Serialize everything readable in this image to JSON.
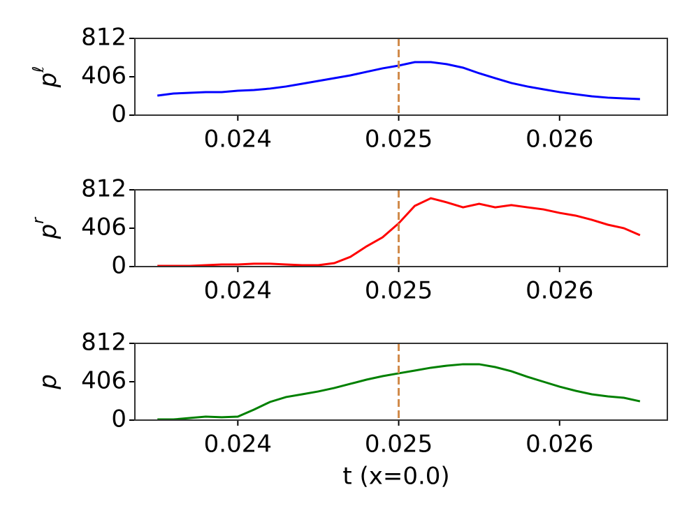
{
  "chart_data": [
    {
      "type": "line",
      "ylabel": "p",
      "ylabel_superscript": "ℓ",
      "x": [
        0.0235,
        0.0236,
        0.0237,
        0.0238,
        0.0239,
        0.024,
        0.0241,
        0.0242,
        0.0243,
        0.0244,
        0.0245,
        0.0246,
        0.0247,
        0.0248,
        0.0249,
        0.025,
        0.0251,
        0.0252,
        0.0253,
        0.0254,
        0.0255,
        0.0256,
        0.0257,
        0.0258,
        0.0259,
        0.026,
        0.0261,
        0.0262,
        0.0263,
        0.0264,
        0.0265
      ],
      "series": [
        {
          "color": "#0000ff",
          "values": [
            207,
            229,
            236,
            244,
            244,
            258,
            266,
            281,
            303,
            332,
            362,
            391,
            421,
            458,
            495,
            524,
            561,
            561,
            539,
            502,
            443,
            391,
            340,
            303,
            273,
            244,
            221,
            199,
            185,
            177,
            170
          ]
        }
      ],
      "xlim": [
        0.02336,
        0.02667
      ],
      "xticks": [
        0.024,
        0.025,
        0.026
      ],
      "ylim": [
        0,
        812
      ],
      "yticks": [
        0,
        406,
        812
      ],
      "vline": {
        "x": 0.025,
        "color": "#d08a4a",
        "linestyle": "dashed"
      }
    },
    {
      "type": "line",
      "ylabel": "p",
      "ylabel_superscript": "r",
      "x": [
        0.0235,
        0.0236,
        0.0237,
        0.0238,
        0.0239,
        0.024,
        0.0241,
        0.0242,
        0.0243,
        0.0244,
        0.0245,
        0.0246,
        0.0247,
        0.0248,
        0.0249,
        0.025,
        0.0251,
        0.0252,
        0.0253,
        0.0254,
        0.0255,
        0.0256,
        0.0257,
        0.0258,
        0.0259,
        0.026,
        0.0261,
        0.0262,
        0.0263,
        0.0264,
        0.0265
      ],
      "series": [
        {
          "color": "#ff0000",
          "values": [
            7,
            7,
            7,
            15,
            22,
            22,
            30,
            30,
            22,
            15,
            15,
            37,
            103,
            214,
            310,
            458,
            642,
            723,
            679,
            627,
            664,
            627,
            650,
            627,
            605,
            568,
            539,
            495,
            443,
            406,
            332
          ]
        }
      ],
      "xlim": [
        0.02336,
        0.02667
      ],
      "xticks": [
        0.024,
        0.025,
        0.026
      ],
      "ylim": [
        0,
        812
      ],
      "yticks": [
        0,
        406,
        812
      ],
      "vline": {
        "x": 0.025,
        "color": "#d08a4a",
        "linestyle": "dashed"
      }
    },
    {
      "type": "line",
      "ylabel": "p",
      "xlabel": "t (x=0.0)",
      "x": [
        0.0235,
        0.0236,
        0.0237,
        0.0238,
        0.0239,
        0.024,
        0.0241,
        0.0242,
        0.0243,
        0.0244,
        0.0245,
        0.0246,
        0.0247,
        0.0248,
        0.0249,
        0.025,
        0.0251,
        0.0252,
        0.0253,
        0.0254,
        0.0255,
        0.0256,
        0.0257,
        0.0258,
        0.0259,
        0.026,
        0.0261,
        0.0262,
        0.0263,
        0.0264,
        0.0265
      ],
      "series": [
        {
          "color": "#008000",
          "values": [
            7,
            7,
            22,
            37,
            30,
            37,
            111,
            192,
            244,
            273,
            303,
            340,
            384,
            428,
            465,
            495,
            524,
            554,
            576,
            591,
            591,
            561,
            517,
            458,
            406,
            354,
            310,
            273,
            251,
            236,
            199
          ]
        }
      ],
      "xlim": [
        0.02336,
        0.02667
      ],
      "xticks": [
        0.024,
        0.025,
        0.026
      ],
      "ylim": [
        0,
        812
      ],
      "yticks": [
        0,
        406,
        812
      ],
      "vline": {
        "x": 0.025,
        "color": "#d08a4a",
        "linestyle": "dashed"
      }
    }
  ]
}
